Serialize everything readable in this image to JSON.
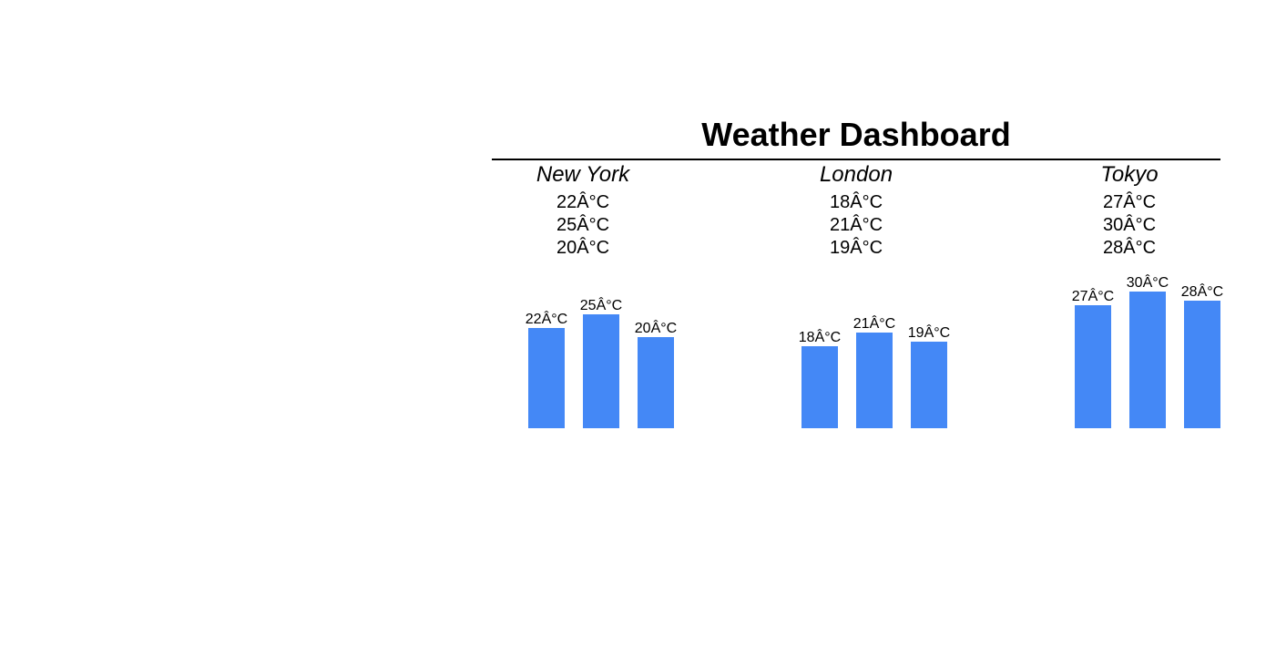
{
  "title": "Weather Dashboard",
  "colors": {
    "bar": "#4488f6",
    "text": "#000000",
    "background": "#ffffff"
  },
  "cities": [
    {
      "name": "New York",
      "temps": [
        "22Â°C",
        "25Â°C",
        "20Â°C"
      ]
    },
    {
      "name": "London",
      "temps": [
        "18Â°C",
        "21Â°C",
        "19Â°C"
      ]
    },
    {
      "name": "Tokyo",
      "temps": [
        "27Â°C",
        "30Â°C",
        "28Â°C"
      ]
    }
  ],
  "chart_data": {
    "type": "bar",
    "unit_label": "Â°C",
    "groups": [
      {
        "name": "New York",
        "values": [
          22,
          25,
          20
        ],
        "labels": [
          "22Â°C",
          "25Â°C",
          "20Â°C"
        ]
      },
      {
        "name": "London",
        "values": [
          18,
          21,
          19
        ],
        "labels": [
          "18Â°C",
          "21Â°C",
          "19Â°C"
        ]
      },
      {
        "name": "Tokyo",
        "values": [
          27,
          30,
          28
        ],
        "labels": [
          "27Â°C",
          "30Â°C",
          "28Â°C"
        ]
      }
    ],
    "grid": false,
    "legend": "none"
  }
}
